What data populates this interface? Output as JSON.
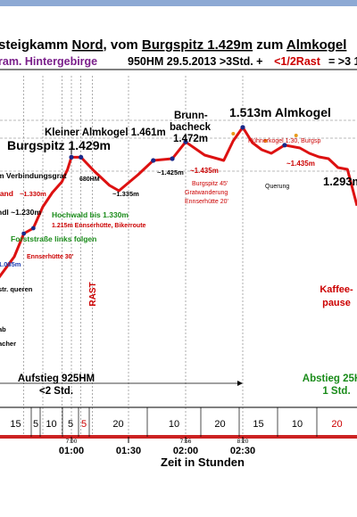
{
  "chart_data": {
    "type": "line",
    "title": "steigkamm Nord, vom Burgspitz 1.429m zum Almkogel",
    "title_parts": [
      "steigkamm ",
      "Nord",
      ", vom ",
      "Burgspitz 1.429m",
      " zum ",
      "Almkogel"
    ],
    "subtitle_left": "ram. Hintergebirge",
    "subtitle_stats": "950HM   29.5.2013   >3Std. +",
    "subtitle_rast": "<1/2Rast",
    "subtitle_end": "= >3 1/",
    "xlabel": "Zeit in Stunden",
    "xticks": [
      {
        "t": 60,
        "label": "01:00"
      },
      {
        "t": 90,
        "label": "01:30"
      },
      {
        "t": 120,
        "label": "02:00"
      },
      {
        "t": 150,
        "label": "02:30"
      }
    ],
    "clock_times": [
      {
        "t": 60,
        "label": "7:00"
      },
      {
        "t": 120,
        "label": "7:56"
      },
      {
        "t": 150,
        "label": "8:20"
      }
    ],
    "segments": [
      {
        "label": "15",
        "color": "#000000"
      },
      {
        "label": "5",
        "color": "#000000"
      },
      {
        "label": "10",
        "color": "#000000"
      },
      {
        "label": "5",
        "color": "#000000"
      },
      {
        "label": "5",
        "color": "#cc0000"
      },
      {
        "label": "20",
        "color": "#000000"
      },
      {
        "label": "10",
        "color": "#000000"
      },
      {
        "label": "20",
        "color": "#000000"
      },
      {
        "label": "15",
        "color": "#000000"
      },
      {
        "label": "10",
        "color": "#000000"
      },
      {
        "label": "20",
        "color": "#cc0000"
      }
    ],
    "profile": [
      [
        21,
        1085
      ],
      [
        30,
        1150
      ],
      [
        35,
        1215
      ],
      [
        40,
        1230
      ],
      [
        45,
        1290
      ],
      [
        50,
        1330
      ],
      [
        55,
        1360
      ],
      [
        58,
        1395
      ],
      [
        60,
        1429
      ],
      [
        65,
        1429
      ],
      [
        72,
        1390
      ],
      [
        80,
        1350
      ],
      [
        85,
        1335
      ],
      [
        95,
        1380
      ],
      [
        103,
        1420
      ],
      [
        113,
        1425
      ],
      [
        120,
        1472
      ],
      [
        130,
        1435
      ],
      [
        140,
        1420
      ],
      [
        145,
        1475
      ],
      [
        150,
        1513
      ],
      [
        155,
        1470
      ],
      [
        160,
        1450
      ],
      [
        165,
        1440
      ],
      [
        172,
        1463
      ],
      [
        180,
        1455
      ],
      [
        185,
        1440
      ],
      [
        190,
        1430
      ],
      [
        195,
        1425
      ],
      [
        200,
        1400
      ],
      [
        205,
        1395
      ],
      [
        210,
        1293
      ]
    ],
    "rest": [
      [
        210,
        1293
      ],
      [
        240,
        1293
      ]
    ],
    "labels": {
      "burgspitz": "Burgspitz 1.429m",
      "kleiner": "Kleiner Almkogel 1.461m",
      "brunn1": "Brunn-",
      "brunn2": "bacheck",
      "brunn3": "1.472m",
      "almkogel": "1.513m Almkogel",
      "almhuette": "1.293m",
      "verbindung": "m Verbindungsgrat",
      "stand": "tand",
      "stand_alt": "~1.330m",
      "ndl": "ndl ~1.230m",
      "hochwald": "Hochwald bis 1.330m",
      "ennserhuette1": "1.215m Ennserhütte, Bikerroute",
      "forststr": "Forststraße links folgen",
      "ennserhuette2": "Ennserhütte 30'",
      "alt1085": "1.085m",
      "str_queren": "str. queren",
      "ab": "ab",
      "acher": "acher",
      "hm680": "680HM",
      "alt1335": "~1.335m",
      "alt1425": "~1.425m",
      "alt1435a": "~1.435m",
      "alt1435b": "~1.435m",
      "hn1": "Burgspitz 45'",
      "hn2": "Gratwanderung",
      "hn3": "Ennserhütte 20'",
      "huehnerkogel": "Hühnerkogel 1:30, Burgsp",
      "querung": "Querung",
      "rast": "RAST",
      "kaffee1": "Kaffee-",
      "kaffee2": "pause",
      "aufstieg1": "Aufstieg 925HM",
      "aufstieg2": "<2 Std.",
      "abstieg1": "Abstieg 25H",
      "abstieg2": "1 Std."
    }
  }
}
